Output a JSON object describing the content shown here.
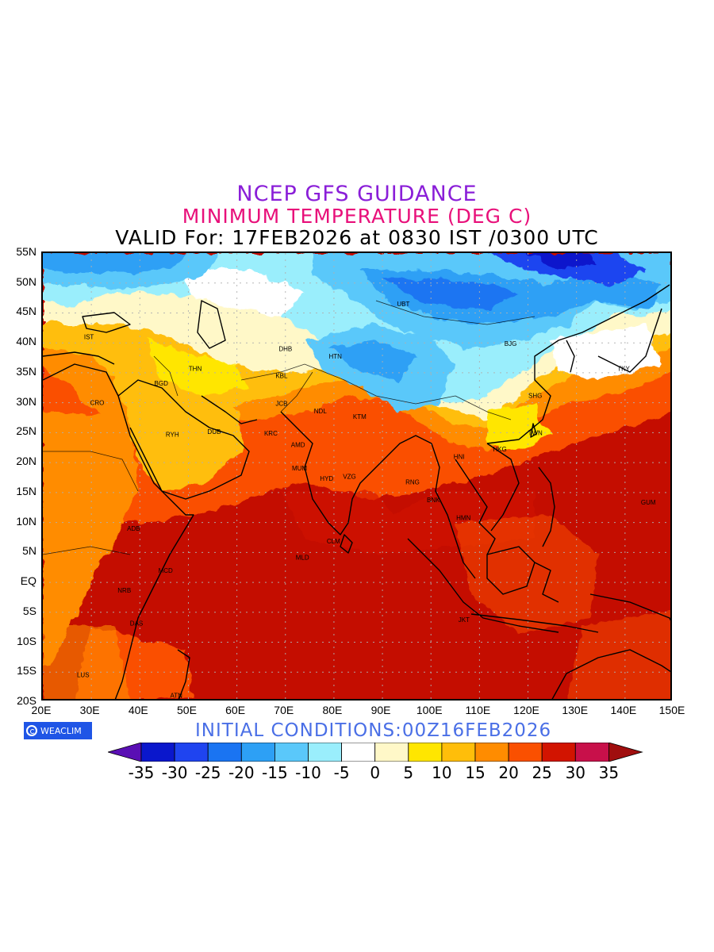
{
  "title": {
    "line1": "NCEP GFS GUIDANCE",
    "line2": "MINIMUM TEMPERATURE (DEG C)",
    "line3": "VALID For: 17FEB2026 at 0830 IST /0300 UTC"
  },
  "initial_conditions": "INITIAL CONDITIONS:00Z16FEB2026",
  "logo_text": "WEACLIM",
  "map": {
    "lon_range": [
      20,
      150
    ],
    "lat_range": [
      -20,
      55
    ],
    "y_ticks": [
      "55N",
      "50N",
      "45N",
      "40N",
      "35N",
      "30N",
      "25N",
      "20N",
      "15N",
      "10N",
      "5N",
      "EQ",
      "5S",
      "10S",
      "15S",
      "20S"
    ],
    "x_ticks": [
      "20E",
      "30E",
      "40E",
      "50E",
      "60E",
      "70E",
      "80E",
      "90E",
      "100E",
      "110E",
      "120E",
      "130E",
      "140E",
      "150E"
    ],
    "stations": [
      {
        "code": "UBT",
        "lon": 94.3,
        "lat": 46.5
      },
      {
        "code": "BJG",
        "lon": 116.4,
        "lat": 39.9
      },
      {
        "code": "DHB",
        "lon": 70.0,
        "lat": 39.0
      },
      {
        "code": "HTN",
        "lon": 80.3,
        "lat": 37.8
      },
      {
        "code": "IST",
        "lon": 29.5,
        "lat": 41.0
      },
      {
        "code": "THN",
        "lon": 51.4,
        "lat": 35.7
      },
      {
        "code": "KBL",
        "lon": 69.2,
        "lat": 34.5
      },
      {
        "code": "TKY",
        "lon": 139.7,
        "lat": 35.7
      },
      {
        "code": "BGD",
        "lon": 44.4,
        "lat": 33.3
      },
      {
        "code": "SHG",
        "lon": 121.5,
        "lat": 31.2
      },
      {
        "code": "CRO",
        "lon": 31.2,
        "lat": 30.0
      },
      {
        "code": "JCB",
        "lon": 69.2,
        "lat": 29.9
      },
      {
        "code": "NDL",
        "lon": 77.2,
        "lat": 28.6
      },
      {
        "code": "KTM",
        "lon": 85.3,
        "lat": 27.7
      },
      {
        "code": "RYH",
        "lon": 46.7,
        "lat": 24.7
      },
      {
        "code": "DUB",
        "lon": 55.3,
        "lat": 25.2
      },
      {
        "code": "KRC",
        "lon": 67.0,
        "lat": 24.9
      },
      {
        "code": "TWN",
        "lon": 121.5,
        "lat": 25.0
      },
      {
        "code": "AMD",
        "lon": 72.6,
        "lat": 23.0
      },
      {
        "code": "HNI",
        "lon": 105.8,
        "lat": 21.0
      },
      {
        "code": "HKG",
        "lon": 114.2,
        "lat": 22.3
      },
      {
        "code": "MUM",
        "lon": 72.9,
        "lat": 19.1
      },
      {
        "code": "HYD",
        "lon": 78.5,
        "lat": 17.4
      },
      {
        "code": "VZG",
        "lon": 83.2,
        "lat": 17.7
      },
      {
        "code": "RNG",
        "lon": 96.2,
        "lat": 16.8
      },
      {
        "code": "BNK",
        "lon": 100.5,
        "lat": 13.8
      },
      {
        "code": "GUM",
        "lon": 144.8,
        "lat": 13.4
      },
      {
        "code": "HMN",
        "lon": 106.7,
        "lat": 10.8
      },
      {
        "code": "ADB",
        "lon": 38.7,
        "lat": 9.0
      },
      {
        "code": "CLM",
        "lon": 79.9,
        "lat": 6.9
      },
      {
        "code": "MLD",
        "lon": 73.5,
        "lat": 4.2
      },
      {
        "code": "MCD",
        "lon": 45.3,
        "lat": 2.0
      },
      {
        "code": "NRB",
        "lon": 36.8,
        "lat": -1.3
      },
      {
        "code": "DAS",
        "lon": 39.3,
        "lat": -6.8
      },
      {
        "code": "JKT",
        "lon": 106.8,
        "lat": -6.2
      },
      {
        "code": "LUS",
        "lon": 28.3,
        "lat": -15.4
      },
      {
        "code": "ATN",
        "lon": 47.5,
        "lat": -18.9
      }
    ]
  },
  "colorbar": {
    "labels": [
      "-35",
      "-30",
      "-25",
      "-20",
      "-15",
      "-10",
      "-5",
      "0",
      "5",
      "10",
      "15",
      "20",
      "25",
      "30",
      "35"
    ],
    "colors": {
      "below": "#5a0fb4",
      "bins": [
        "#0a17cc",
        "#1f44f0",
        "#1a74f2",
        "#2da0f5",
        "#5ac8fa",
        "#9aeefc",
        "#ffffff",
        "#fff8c8",
        "#ffe600",
        "#ffbe0a",
        "#ff8c00",
        "#fa5000",
        "#d21400",
        "#c8104a"
      ],
      "above": "#a00e0e"
    }
  }
}
